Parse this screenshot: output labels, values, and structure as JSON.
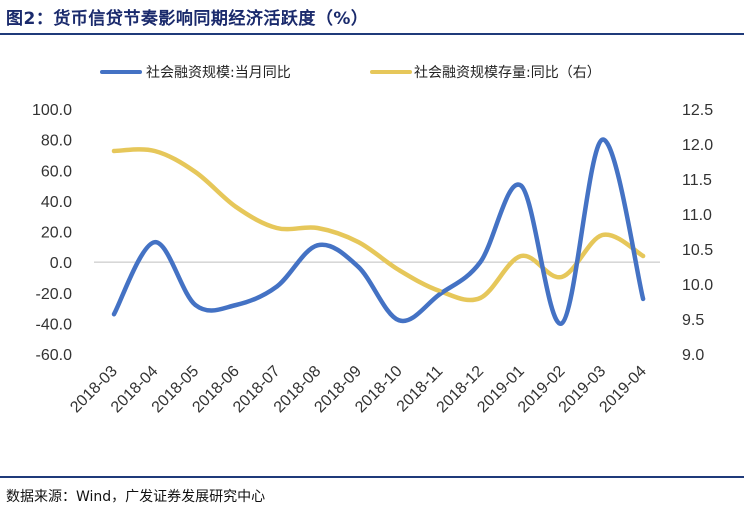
{
  "header": {
    "title": "图2：货币信贷节奏影响同期经济活跃度（%）"
  },
  "footer": {
    "source": "数据来源：Wind，广发证券发展研究中心"
  },
  "colors": {
    "series1": "#4472C4",
    "series2": "#E6C75A",
    "rule": "#1f3a7a",
    "title": "#1a2a6c"
  },
  "chart_data": {
    "type": "line",
    "title": "",
    "xlabel": "",
    "ylabel": "",
    "grid": false,
    "legend_position": "top",
    "categories": [
      "2018-03",
      "2018-04",
      "2018-05",
      "2018-06",
      "2018-07",
      "2018-08",
      "2018-09",
      "2018-10",
      "2018-11",
      "2018-12",
      "2019-01",
      "2019-02",
      "2019-03",
      "2019-04"
    ],
    "left_axis": {
      "ylim": [
        -60,
        100
      ],
      "ticks": [
        "100.0",
        "80.0",
        "60.0",
        "40.0",
        "20.0",
        "0.0",
        "-20.0",
        "-40.0",
        "-60.0"
      ]
    },
    "right_axis": {
      "ylim": [
        9.0,
        12.5
      ],
      "ticks": [
        "12.5",
        "12.0",
        "11.5",
        "11.0",
        "10.5",
        "10.0",
        "9.5",
        "9.0"
      ]
    },
    "series": [
      {
        "name": "社会融资规模:当月同比",
        "axis": "left",
        "values": [
          -34,
          13,
          -28,
          -28,
          -16,
          11,
          -3,
          -38,
          -21,
          0,
          50,
          -40,
          80,
          -24
        ]
      },
      {
        "name": "社会融资规模存量:同比（右）",
        "axis": "right",
        "values": [
          11.9,
          11.9,
          11.6,
          11.1,
          10.8,
          10.8,
          10.6,
          10.2,
          9.9,
          9.8,
          10.4,
          10.1,
          10.7,
          10.4
        ]
      }
    ]
  }
}
